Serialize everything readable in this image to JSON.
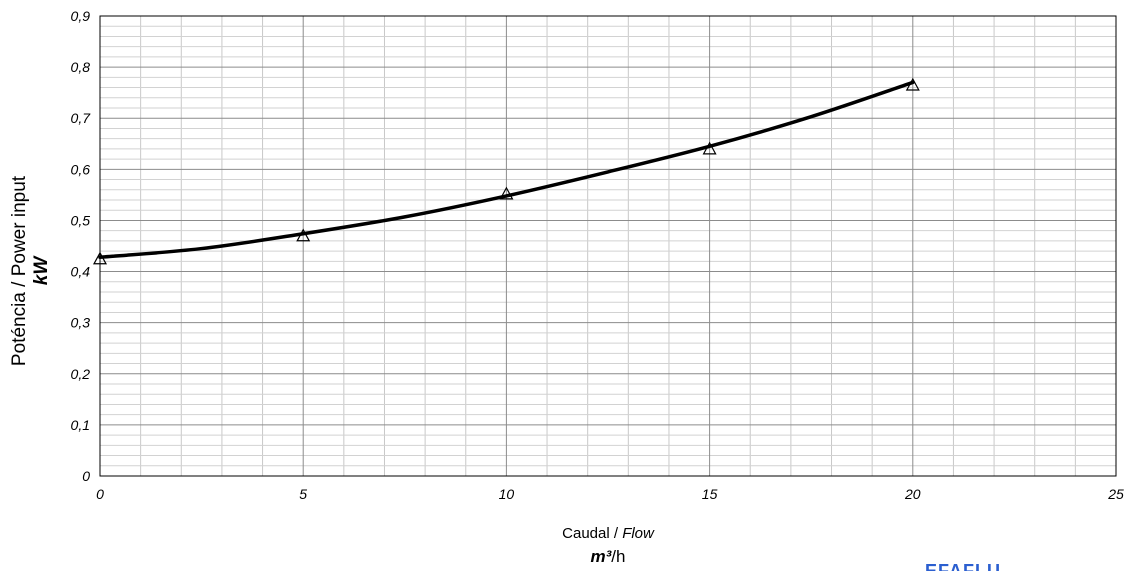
{
  "chart_data": {
    "type": "line",
    "x_title": "Caudal / ",
    "x_title_italic": "Flow",
    "x_unit_bold": "m³",
    "x_unit_rest": "/h",
    "y_title": "Poténcia / Power input",
    "y_unit": "kW",
    "xlim": [
      0,
      25
    ],
    "ylim": [
      0,
      0.9
    ],
    "x_ticks": [
      "0",
      "5",
      "10",
      "15",
      "20",
      "25"
    ],
    "y_ticks": [
      "0",
      "0,1",
      "0,2",
      "0,3",
      "0,4",
      "0,5",
      "0,6",
      "0,7",
      "0,8",
      "0,9"
    ],
    "grid": true,
    "series": [
      {
        "marker": "triangle",
        "points": [
          {
            "x": 0,
            "y": 0.425
          },
          {
            "x": 5,
            "y": 0.47
          },
          {
            "x": 10,
            "y": 0.552
          },
          {
            "x": 15,
            "y": 0.64
          },
          {
            "x": 20,
            "y": 0.765
          }
        ],
        "fit_curve": [
          {
            "x": 0,
            "y": 0.428
          },
          {
            "x": 2.5,
            "y": 0.445
          },
          {
            "x": 5,
            "y": 0.474
          },
          {
            "x": 7.5,
            "y": 0.507
          },
          {
            "x": 10,
            "y": 0.548
          },
          {
            "x": 12.5,
            "y": 0.595
          },
          {
            "x": 15,
            "y": 0.645
          },
          {
            "x": 17.5,
            "y": 0.703
          },
          {
            "x": 20,
            "y": 0.77
          }
        ]
      }
    ]
  },
  "logo": {
    "text": "EFAFLU"
  }
}
